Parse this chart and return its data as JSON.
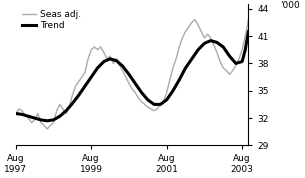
{
  "title": "",
  "ylabel": "'000",
  "ylim": [
    29,
    44.5
  ],
  "yticks": [
    29,
    32,
    35,
    38,
    41,
    44
  ],
  "xlim_start": 1997.58,
  "xlim_end": 2003.75,
  "xtick_positions": [
    1997.58,
    1999.58,
    2001.58,
    2003.58
  ],
  "xtick_labels": [
    "Aug\n1997",
    "Aug\n1999",
    "Aug\n2001",
    "Aug\n2003"
  ],
  "legend_entries": [
    "Trend",
    "Seas adj."
  ],
  "trend_color": "#000000",
  "seas_color": "#aaaaaa",
  "trend_linewidth": 2.2,
  "seas_linewidth": 1.0,
  "background_color": "#ffffff",
  "trend_data": [
    [
      1997.583,
      32.5
    ],
    [
      1997.75,
      32.4
    ],
    [
      1997.917,
      32.2
    ],
    [
      1998.083,
      32.0
    ],
    [
      1998.25,
      31.8
    ],
    [
      1998.417,
      31.7
    ],
    [
      1998.583,
      31.8
    ],
    [
      1998.75,
      32.2
    ],
    [
      1998.917,
      32.8
    ],
    [
      1999.083,
      33.6
    ],
    [
      1999.25,
      34.5
    ],
    [
      1999.417,
      35.5
    ],
    [
      1999.583,
      36.5
    ],
    [
      1999.75,
      37.5
    ],
    [
      1999.917,
      38.2
    ],
    [
      2000.083,
      38.5
    ],
    [
      2000.25,
      38.3
    ],
    [
      2000.417,
      37.7
    ],
    [
      2000.583,
      36.8
    ],
    [
      2000.75,
      35.8
    ],
    [
      2000.917,
      34.8
    ],
    [
      2001.083,
      34.0
    ],
    [
      2001.25,
      33.5
    ],
    [
      2001.417,
      33.5
    ],
    [
      2001.583,
      34.0
    ],
    [
      2001.75,
      35.0
    ],
    [
      2001.917,
      36.2
    ],
    [
      2002.083,
      37.5
    ],
    [
      2002.25,
      38.5
    ],
    [
      2002.417,
      39.5
    ],
    [
      2002.583,
      40.2
    ],
    [
      2002.75,
      40.5
    ],
    [
      2002.917,
      40.3
    ],
    [
      2003.083,
      39.8
    ],
    [
      2003.25,
      38.8
    ],
    [
      2003.417,
      38.0
    ],
    [
      2003.583,
      38.2
    ],
    [
      2003.667,
      39.5
    ],
    [
      2003.75,
      41.5
    ]
  ],
  "seas_data": [
    [
      1997.583,
      32.5
    ],
    [
      1997.667,
      33.0
    ],
    [
      1997.75,
      32.8
    ],
    [
      1997.833,
      32.3
    ],
    [
      1997.917,
      32.0
    ],
    [
      1998.0,
      31.5
    ],
    [
      1998.083,
      31.8
    ],
    [
      1998.167,
      32.5
    ],
    [
      1998.25,
      31.5
    ],
    [
      1998.333,
      31.2
    ],
    [
      1998.417,
      30.8
    ],
    [
      1998.5,
      31.2
    ],
    [
      1998.583,
      31.5
    ],
    [
      1998.667,
      32.8
    ],
    [
      1998.75,
      33.5
    ],
    [
      1998.833,
      33.0
    ],
    [
      1998.917,
      32.5
    ],
    [
      1999.0,
      33.2
    ],
    [
      1999.083,
      34.5
    ],
    [
      1999.167,
      35.5
    ],
    [
      1999.25,
      36.0
    ],
    [
      1999.333,
      36.5
    ],
    [
      1999.417,
      37.0
    ],
    [
      1999.5,
      38.5
    ],
    [
      1999.583,
      39.5
    ],
    [
      1999.667,
      39.8
    ],
    [
      1999.75,
      39.5
    ],
    [
      1999.833,
      39.8
    ],
    [
      1999.917,
      39.2
    ],
    [
      2000.0,
      38.5
    ],
    [
      2000.083,
      38.8
    ],
    [
      2000.167,
      38.0
    ],
    [
      2000.25,
      38.5
    ],
    [
      2000.333,
      37.8
    ],
    [
      2000.417,
      37.2
    ],
    [
      2000.5,
      36.5
    ],
    [
      2000.583,
      35.8
    ],
    [
      2000.667,
      35.2
    ],
    [
      2000.75,
      34.8
    ],
    [
      2000.833,
      34.2
    ],
    [
      2000.917,
      33.8
    ],
    [
      2001.0,
      33.5
    ],
    [
      2001.083,
      33.2
    ],
    [
      2001.167,
      33.0
    ],
    [
      2001.25,
      32.8
    ],
    [
      2001.333,
      33.0
    ],
    [
      2001.417,
      33.5
    ],
    [
      2001.5,
      33.8
    ],
    [
      2001.583,
      34.8
    ],
    [
      2001.667,
      36.2
    ],
    [
      2001.75,
      37.5
    ],
    [
      2001.833,
      38.5
    ],
    [
      2001.917,
      39.8
    ],
    [
      2002.0,
      40.8
    ],
    [
      2002.083,
      41.5
    ],
    [
      2002.167,
      42.0
    ],
    [
      2002.25,
      42.5
    ],
    [
      2002.333,
      42.8
    ],
    [
      2002.417,
      42.2
    ],
    [
      2002.5,
      41.5
    ],
    [
      2002.583,
      40.8
    ],
    [
      2002.667,
      41.2
    ],
    [
      2002.75,
      40.8
    ],
    [
      2002.833,
      40.0
    ],
    [
      2002.917,
      39.2
    ],
    [
      2003.0,
      38.2
    ],
    [
      2003.083,
      37.5
    ],
    [
      2003.167,
      37.2
    ],
    [
      2003.25,
      36.8
    ],
    [
      2003.333,
      37.2
    ],
    [
      2003.417,
      37.8
    ],
    [
      2003.5,
      38.5
    ],
    [
      2003.583,
      39.5
    ],
    [
      2003.667,
      41.0
    ],
    [
      2003.75,
      42.8
    ]
  ]
}
